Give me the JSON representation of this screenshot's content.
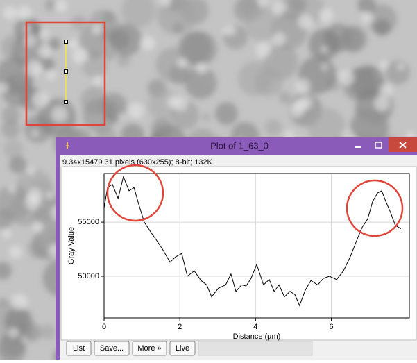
{
  "window": {
    "title": "Plot of 1_63_0",
    "info": "9.34x15479.31 pixels (630x255); 8-bit; 132K",
    "buttons": [
      "List",
      "Save...",
      "More »",
      "Live"
    ]
  },
  "chart_data": {
    "type": "line",
    "xlabel": "Distance (µm)",
    "ylabel": "Gray Value",
    "color": "#000000",
    "xlim": [
      0,
      8.06
    ],
    "ylim": [
      46150,
      59500
    ],
    "xticks": [
      0,
      2,
      4,
      6
    ],
    "yticks": [
      50000,
      55000
    ],
    "grid": true,
    "x": [
      0,
      0.09,
      0.22,
      0.37,
      0.51,
      0.66,
      0.79,
      0.92,
      1.06,
      1.25,
      1.37,
      1.56,
      1.74,
      1.89,
      2.05,
      2.2,
      2.38,
      2.56,
      2.71,
      2.84,
      3.02,
      3.21,
      3.35,
      3.48,
      3.63,
      3.75,
      3.88,
      4.03,
      4.21,
      4.36,
      4.49,
      4.62,
      4.76,
      4.91,
      5.04,
      5.16,
      5.31,
      5.46,
      5.64,
      5.79,
      5.95,
      6.14,
      6.32,
      6.5,
      6.68,
      6.81,
      6.96,
      7.09,
      7.22,
      7.33,
      7.44,
      7.55,
      7.69,
      7.84
    ],
    "values": [
      56300,
      58200,
      58500,
      57200,
      59200,
      57900,
      58200,
      56600,
      55000,
      54000,
      53400,
      52400,
      51300,
      51800,
      52100,
      50000,
      50500,
      49600,
      49200,
      48100,
      48900,
      49200,
      50200,
      48600,
      49200,
      49100,
      49800,
      51100,
      49200,
      49700,
      48600,
      49200,
      48100,
      48600,
      48300,
      47300,
      48700,
      49600,
      49200,
      49800,
      50000,
      49700,
      50500,
      51800,
      53400,
      54500,
      55300,
      56900,
      57700,
      57900,
      56900,
      56000,
      54700,
      54400
    ]
  }
}
